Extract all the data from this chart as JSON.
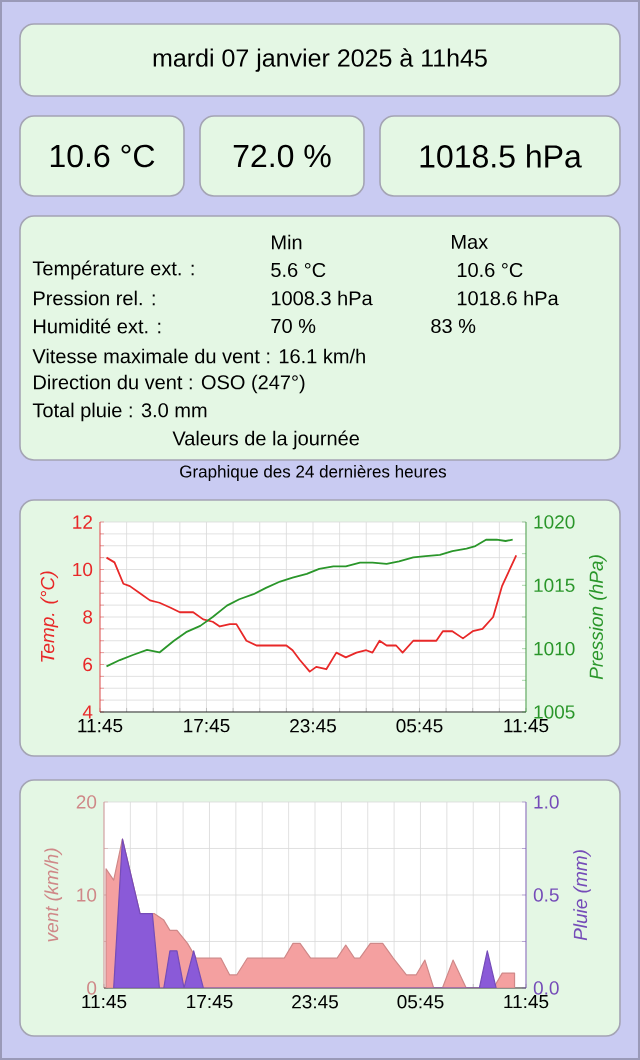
{
  "chart_data": [
    {
      "type": "other",
      "title": "mardi 07 janvier 2025 à 11h45"
    },
    {
      "type": "other",
      "annotations": [
        "10.6 °C",
        "72.0 %",
        "1018.5 hPa"
      ]
    },
    {
      "type": "other",
      "annotations": [
        "Min",
        "Max",
        "Température ext. :",
        "5.6 °C",
        "10.6 °C",
        "Pression rel. :",
        "1008.3 hPa",
        "1018.6 hPa",
        "Humidité ext. :",
        "70 %",
        "83 %",
        "Vitesse maximale du vent : 16.1 km/h",
        "Direction du vent : OSO (247°)",
        "Total pluie : 3.0 mm",
        "Valeurs de la journée"
      ]
    },
    {
      "type": "line",
      "title": "Graphique des 24 dernières heures",
      "ylabel": "Temp. (°C)",
      "y2label": "Pression (hPa)",
      "grid": true,
      "xlim": [
        "2025-01-06T11:45",
        "2025-01-07T11:45"
      ],
      "xticks": [
        {
          "value": "2025-01-06T11:45",
          "label": "11:45"
        },
        {
          "value": "2025-01-06T13:15",
          "label": null
        },
        {
          "value": "2025-01-06T14:45",
          "label": null
        },
        {
          "value": "2025-01-06T16:15",
          "label": null
        },
        {
          "value": "2025-01-06T17:45",
          "label": "17:45"
        },
        {
          "value": "2025-01-06T19:15",
          "label": null
        },
        {
          "value": "2025-01-06T20:45",
          "label": null
        },
        {
          "value": "2025-01-06T22:15",
          "label": null
        },
        {
          "value": "2025-01-06T23:45",
          "label": "23:45"
        },
        {
          "value": "2025-01-07T01:15",
          "label": null
        },
        {
          "value": "2025-01-07T02:45",
          "label": null
        },
        {
          "value": "2025-01-07T04:15",
          "label": null
        },
        {
          "value": "2025-01-07T05:45",
          "label": "05:45"
        },
        {
          "value": "2025-01-07T07:15",
          "label": null
        },
        {
          "value": "2025-01-07T08:45",
          "label": null
        },
        {
          "value": "2025-01-07T10:15",
          "label": null
        },
        {
          "value": "2025-01-07T11:45",
          "label": "11:45"
        }
      ],
      "ylim": [
        4,
        12
      ],
      "yticks": [
        4,
        {
          "value": 4.5,
          "label": null
        },
        {
          "value": 5,
          "label": null
        },
        {
          "value": 5.5,
          "label": null
        },
        6,
        {
          "value": 6.5,
          "label": null
        },
        {
          "value": 7,
          "label": null
        },
        {
          "value": 7.5,
          "label": null
        },
        8,
        {
          "value": 8.5,
          "label": null
        },
        {
          "value": 9,
          "label": null
        },
        {
          "value": 9.5,
          "label": null
        },
        10,
        {
          "value": 10.5,
          "label": null
        },
        {
          "value": 11,
          "label": null
        },
        {
          "value": 11.5,
          "label": null
        },
        12
      ],
      "y2lim": [
        1005,
        1020
      ],
      "y2ticks": [
        1005,
        {
          "value": 1007.5,
          "label": null
        },
        1010,
        {
          "value": 1012.5,
          "label": null
        },
        1015,
        {
          "value": 1017.5,
          "label": null
        },
        1020
      ],
      "series": [
        {
          "color": "#e82828",
          "axis": "y",
          "x": [
            "2025-01-06T12:07",
            "2025-01-06T12:34",
            "2025-01-06T13:04",
            "2025-01-06T13:26",
            "2025-01-06T14:00",
            "2025-01-06T14:34",
            "2025-01-06T15:06",
            "2025-01-06T15:42",
            "2025-01-06T16:15",
            "2025-01-06T17:00",
            "2025-01-06T17:34",
            "2025-01-06T18:06",
            "2025-01-06T18:30",
            "2025-01-06T19:04",
            "2025-01-06T19:26",
            "2025-01-06T20:00",
            "2025-01-06T20:34",
            "2025-01-06T21:18",
            "2025-01-06T21:52",
            "2025-01-06T22:15",
            "2025-01-06T22:36",
            "2025-01-06T23:00",
            "2025-01-06T23:34",
            "2025-01-06T23:56",
            "2025-01-07T00:30",
            "2025-01-07T01:04",
            "2025-01-07T01:36",
            "2025-01-07T02:12",
            "2025-01-07T02:45",
            "2025-01-07T03:06",
            "2025-01-07T03:30",
            "2025-01-07T03:54",
            "2025-01-07T04:26",
            "2025-01-07T04:48",
            "2025-01-07T05:24",
            "2025-01-07T06:06",
            "2025-01-07T06:42",
            "2025-01-07T07:04",
            "2025-01-07T07:36",
            "2025-01-07T08:12",
            "2025-01-07T08:45",
            "2025-01-07T09:18",
            "2025-01-07T09:54",
            "2025-01-07T10:24",
            "2025-01-07T11:12"
          ],
          "values": [
            10.5,
            10.3,
            9.4,
            9.3,
            9.0,
            8.7,
            8.6,
            8.4,
            8.2,
            8.2,
            7.9,
            7.8,
            7.6,
            7.7,
            7.7,
            7.0,
            6.8,
            6.8,
            6.8,
            6.8,
            6.6,
            6.2,
            5.7,
            5.9,
            5.8,
            6.5,
            6.3,
            6.5,
            6.6,
            6.5,
            7.0,
            6.8,
            6.8,
            6.5,
            7.0,
            7.0,
            7.0,
            7.4,
            7.4,
            7.1,
            7.4,
            7.5,
            8.0,
            9.3,
            10.6
          ]
        },
        {
          "color": "#2a962a",
          "axis": "y2",
          "x": [
            "2025-01-06T12:07",
            "2025-01-06T12:52",
            "2025-01-06T13:36",
            "2025-01-06T14:24",
            "2025-01-06T15:06",
            "2025-01-06T15:54",
            "2025-01-06T16:36",
            "2025-01-06T17:24",
            "2025-01-06T18:06",
            "2025-01-06T18:54",
            "2025-01-06T19:36",
            "2025-01-06T20:24",
            "2025-01-06T21:06",
            "2025-01-06T21:54",
            "2025-01-06T22:36",
            "2025-01-06T23:24",
            "2025-01-07T00:06",
            "2025-01-07T00:54",
            "2025-01-07T01:36",
            "2025-01-07T02:24",
            "2025-01-07T03:06",
            "2025-01-07T03:54",
            "2025-01-07T04:36",
            "2025-01-07T05:24",
            "2025-01-07T06:06",
            "2025-01-07T06:54",
            "2025-01-07T07:36",
            "2025-01-07T08:24",
            "2025-01-07T08:54",
            "2025-01-07T09:30",
            "2025-01-07T10:06",
            "2025-01-07T10:36",
            "2025-01-07T11:00"
          ],
          "values": [
            1008.6,
            1009.1,
            1009.5,
            1009.9,
            1009.7,
            1010.6,
            1011.3,
            1011.8,
            1012.5,
            1013.4,
            1013.9,
            1014.3,
            1014.8,
            1015.3,
            1015.6,
            1015.9,
            1016.3,
            1016.5,
            1016.5,
            1016.8,
            1016.8,
            1016.7,
            1016.9,
            1017.2,
            1017.3,
            1017.4,
            1017.7,
            1017.9,
            1018.1,
            1018.6,
            1018.6,
            1018.5,
            1018.6
          ]
        }
      ]
    },
    {
      "type": "area",
      "ylabel": "vent (km/h)",
      "y2label": "Pluie (mm)",
      "grid": true,
      "xlim": [
        "2025-01-06T11:45",
        "2025-01-07T11:45"
      ],
      "xticks": [
        {
          "value": "2025-01-06T11:45",
          "label": "11:45"
        },
        {
          "value": "2025-01-06T13:15",
          "label": null
        },
        {
          "value": "2025-01-06T14:45",
          "label": null
        },
        {
          "value": "2025-01-06T16:15",
          "label": null
        },
        {
          "value": "2025-01-06T17:45",
          "label": "17:45"
        },
        {
          "value": "2025-01-06T19:15",
          "label": null
        },
        {
          "value": "2025-01-06T20:45",
          "label": null
        },
        {
          "value": "2025-01-06T22:15",
          "label": null
        },
        {
          "value": "2025-01-06T23:45",
          "label": "23:45"
        },
        {
          "value": "2025-01-07T01:15",
          "label": null
        },
        {
          "value": "2025-01-07T02:45",
          "label": null
        },
        {
          "value": "2025-01-07T04:15",
          "label": null
        },
        {
          "value": "2025-01-07T05:45",
          "label": "05:45"
        },
        {
          "value": "2025-01-07T07:15",
          "label": null
        },
        {
          "value": "2025-01-07T08:45",
          "label": null
        },
        {
          "value": "2025-01-07T10:15",
          "label": null
        },
        {
          "value": "2025-01-07T11:45",
          "label": "11:45"
        }
      ],
      "ylim": [
        0,
        20
      ],
      "yticks": [
        0,
        {
          "value": 5,
          "label": null
        },
        10,
        {
          "value": 15,
          "label": null
        },
        20
      ],
      "y2lim": [
        0,
        1
      ],
      "y2ticks": [
        {
          "value": 0,
          "label": "0.0"
        },
        {
          "value": 0.25,
          "label": null
        },
        {
          "value": 0.5,
          "label": "0.5"
        },
        {
          "value": 0.75,
          "label": null
        },
        {
          "value": 1,
          "label": "1.0"
        }
      ],
      "series": [
        {
          "color": "#f4a0a0",
          "axis": "y",
          "x": [
            "2025-01-06T11:52",
            "2025-01-06T12:18",
            "2025-01-06T12:48",
            "2025-01-06T13:48",
            "2025-01-06T14:36",
            "2025-01-06T15:09",
            "2025-01-06T15:30",
            "2025-01-06T15:54",
            "2025-01-06T16:30",
            "2025-01-06T17:00",
            "2025-01-06T18:24",
            "2025-01-06T18:54",
            "2025-01-06T19:18",
            "2025-01-06T19:54",
            "2025-01-06T22:00",
            "2025-01-06T22:30",
            "2025-01-06T22:54",
            "2025-01-06T23:30",
            "2025-01-07T01:00",
            "2025-01-07T01:30",
            "2025-01-07T02:00",
            "2025-01-07T02:18",
            "2025-01-07T02:54",
            "2025-01-07T03:36",
            "2025-01-07T04:12",
            "2025-01-07T04:57",
            "2025-01-07T05:30",
            "2025-01-07T06:00",
            "2025-01-07T06:30",
            "2025-01-07T07:00",
            "2025-01-07T07:36",
            "2025-01-07T08:21",
            "2025-01-07T09:54",
            "2025-01-07T10:24",
            "2025-01-07T11:06"
          ],
          "values": [
            12.8,
            11.6,
            16.0,
            8.0,
            8.0,
            7.3,
            6.2,
            6.2,
            4.8,
            3.2,
            3.2,
            1.4,
            1.4,
            3.2,
            3.2,
            4.8,
            4.8,
            3.2,
            3.2,
            4.6,
            3.2,
            3.2,
            4.8,
            4.8,
            3.2,
            1.4,
            1.4,
            3.0,
            0,
            0,
            3.0,
            0,
            0,
            1.6,
            1.6
          ]
        },
        {
          "color": "#8a5ad8",
          "axis": "y2",
          "x": [
            "2025-01-06T12:18",
            "2025-01-06T12:48",
            "2025-01-06T13:48",
            "2025-01-06T14:30",
            "2025-01-06T14:54",
            "2025-01-06T15:09",
            "2025-01-06T15:30",
            "2025-01-06T15:54",
            "2025-01-06T16:18",
            "2025-01-06T16:51",
            "2025-01-06T17:24",
            "2025-01-07T09:06",
            "2025-01-07T09:33",
            "2025-01-07T10:03"
          ],
          "values": [
            0,
            0.8,
            0.4,
            0.4,
            0,
            0,
            0.2,
            0.2,
            0,
            0.2,
            0,
            0,
            0.2,
            0
          ]
        }
      ]
    }
  ]
}
